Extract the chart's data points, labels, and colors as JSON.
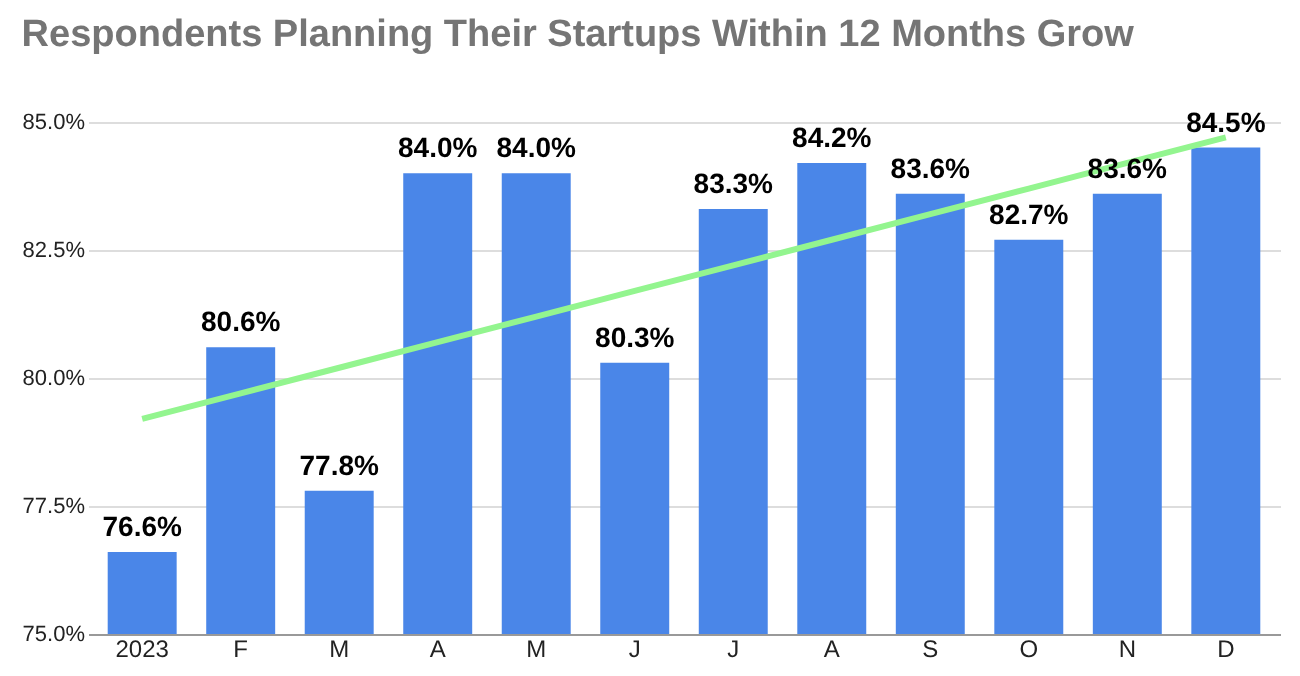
{
  "chart_data": {
    "type": "bar",
    "title": "Respondents Planning Their Startups Within 12 Months Grow",
    "categories": [
      "2023",
      "F",
      "M",
      "A",
      "M",
      "J",
      "J",
      "A",
      "S",
      "O",
      "N",
      "D"
    ],
    "series": [
      {
        "color": "#4a86e8",
        "values": [
          76.6,
          80.6,
          77.8,
          84.0,
          84.0,
          80.3,
          83.3,
          84.2,
          83.6,
          82.7,
          83.6,
          84.5
        ],
        "value_labels": [
          "76.6%",
          "80.6%",
          "77.8%",
          "84.0%",
          "84.0%",
          "80.3%",
          "83.3%",
          "84.2%",
          "83.6%",
          "82.7%",
          "83.6%",
          "84.5%"
        ]
      },
      {
        "type": "line",
        "color": "#93f58f",
        "values": [
          79.2,
          79.7,
          80.2,
          80.7,
          81.2,
          81.7,
          82.2,
          82.7,
          83.2,
          83.7,
          84.2,
          84.7
        ]
      }
    ],
    "ylim": [
      75,
      85
    ],
    "yticks": [
      {
        "value": 75,
        "label": "75.0%"
      },
      {
        "value": 77.5,
        "label": "77.5%"
      },
      {
        "value": 80,
        "label": "80.0%"
      },
      {
        "value": 82.5,
        "label": "82.5%"
      },
      {
        "value": 85,
        "label": "85.0%"
      }
    ],
    "grid": "y"
  }
}
